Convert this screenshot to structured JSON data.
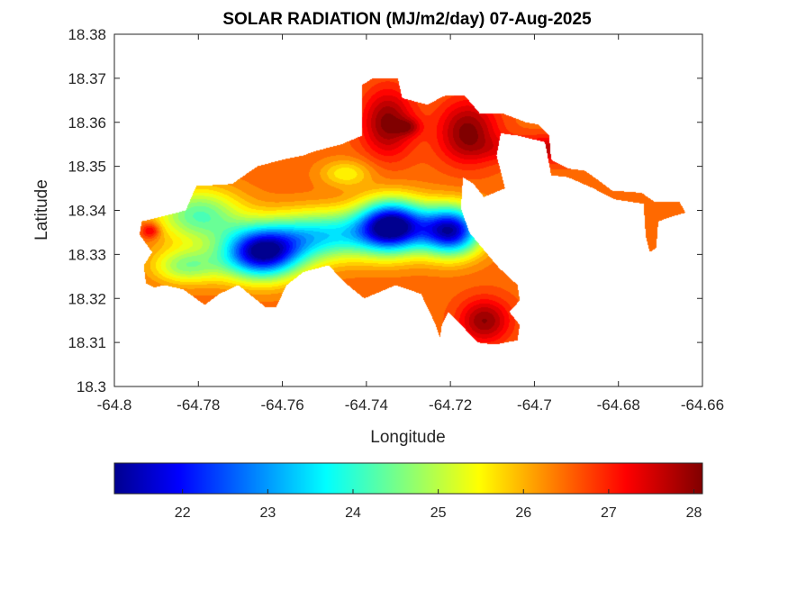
{
  "chart_data": {
    "type": "heatmap",
    "title": "SOLAR RADIATION (MJ/m2/day) 07-Aug-2025",
    "xlabel": "Longitude",
    "ylabel": "Latitude",
    "xlim": [
      -64.8,
      -64.66
    ],
    "ylim": [
      18.3,
      18.38
    ],
    "xticks": [
      -64.8,
      -64.78,
      -64.76,
      -64.74,
      -64.72,
      -64.7,
      -64.68,
      -64.66
    ],
    "xtick_labels": [
      "-64.8",
      "-64.78",
      "-64.76",
      "-64.74",
      "-64.72",
      "-64.7",
      "-64.68",
      "-64.66"
    ],
    "yticks": [
      18.3,
      18.31,
      18.32,
      18.33,
      18.34,
      18.35,
      18.36,
      18.37,
      18.38
    ],
    "ytick_labels": [
      "18.3",
      "18.31",
      "18.32",
      "18.33",
      "18.34",
      "18.35",
      "18.36",
      "18.37",
      "18.38"
    ],
    "grid": false,
    "colormap": "jet",
    "colorbar": {
      "orientation": "horizontal",
      "location": "bottom",
      "range": [
        21.2,
        28.1
      ],
      "ticks": [
        22,
        23,
        24,
        25,
        26,
        27,
        28
      ],
      "tick_labels": [
        "22",
        "23",
        "24",
        "25",
        "26",
        "27",
        "28"
      ]
    },
    "land_outline": [
      [
        -64.7935,
        18.3375
      ],
      [
        -64.789,
        18.3385
      ],
      [
        -64.783,
        18.34
      ],
      [
        -64.7805,
        18.3455
      ],
      [
        -64.772,
        18.346
      ],
      [
        -64.766,
        18.35
      ],
      [
        -64.76,
        18.3515
      ],
      [
        -64.755,
        18.3525
      ],
      [
        -64.752,
        18.3535
      ],
      [
        -64.746,
        18.355
      ],
      [
        -64.741,
        18.357
      ],
      [
        -64.741,
        18.3685
      ],
      [
        -64.7385,
        18.37
      ],
      [
        -64.7325,
        18.37
      ],
      [
        -64.7315,
        18.3655
      ],
      [
        -64.7255,
        18.364
      ],
      [
        -64.7215,
        18.366
      ],
      [
        -64.7165,
        18.366
      ],
      [
        -64.713,
        18.362
      ],
      [
        -64.7075,
        18.362
      ],
      [
        -64.702,
        18.36
      ],
      [
        -64.699,
        18.3595
      ],
      [
        -64.6965,
        18.357
      ],
      [
        -64.696,
        18.3515
      ],
      [
        -64.692,
        18.3495
      ],
      [
        -64.688,
        18.349
      ],
      [
        -64.685,
        18.347
      ],
      [
        -64.6815,
        18.3445
      ],
      [
        -64.6745,
        18.344
      ],
      [
        -64.6715,
        18.342
      ],
      [
        -64.6655,
        18.342
      ],
      [
        -64.664,
        18.3395
      ],
      [
        -64.6675,
        18.3385
      ],
      [
        -64.6705,
        18.3375
      ],
      [
        -64.671,
        18.3315
      ],
      [
        -64.6725,
        18.3305
      ],
      [
        -64.6735,
        18.334
      ],
      [
        -64.674,
        18.3415
      ],
      [
        -64.681,
        18.3425
      ],
      [
        -64.686,
        18.345
      ],
      [
        -64.692,
        18.3475
      ],
      [
        -64.696,
        18.348
      ],
      [
        -64.6975,
        18.3555
      ],
      [
        -64.704,
        18.357
      ],
      [
        -64.708,
        18.3575
      ],
      [
        -64.709,
        18.3525
      ],
      [
        -64.707,
        18.345
      ],
      [
        -64.712,
        18.343
      ],
      [
        -64.7145,
        18.346
      ],
      [
        -64.717,
        18.3475
      ],
      [
        -64.7175,
        18.3405
      ],
      [
        -64.7155,
        18.335
      ],
      [
        -64.712,
        18.331
      ],
      [
        -64.7085,
        18.327
      ],
      [
        -64.704,
        18.323
      ],
      [
        -64.7035,
        18.3195
      ],
      [
        -64.706,
        18.317
      ],
      [
        -64.7035,
        18.314
      ],
      [
        -64.704,
        18.3105
      ],
      [
        -64.7095,
        18.3095
      ],
      [
        -64.7135,
        18.31
      ],
      [
        -64.7175,
        18.314
      ],
      [
        -64.7205,
        18.317
      ],
      [
        -64.722,
        18.314
      ],
      [
        -64.7225,
        18.311
      ],
      [
        -64.7235,
        18.314
      ],
      [
        -64.727,
        18.321
      ],
      [
        -64.733,
        18.323
      ],
      [
        -64.7405,
        18.32
      ],
      [
        -64.745,
        18.3235
      ],
      [
        -64.749,
        18.3275
      ],
      [
        -64.755,
        18.326
      ],
      [
        -64.759,
        18.323
      ],
      [
        -64.7615,
        18.318
      ],
      [
        -64.764,
        18.318
      ],
      [
        -64.7705,
        18.323
      ],
      [
        -64.775,
        18.321
      ],
      [
        -64.7785,
        18.3185
      ],
      [
        -64.7835,
        18.322
      ],
      [
        -64.788,
        18.323
      ],
      [
        -64.7905,
        18.3225
      ],
      [
        -64.7925,
        18.3235
      ],
      [
        -64.793,
        18.3275
      ],
      [
        -64.791,
        18.3305
      ],
      [
        -64.794,
        18.3345
      ],
      [
        -64.7935,
        18.3375
      ]
    ],
    "field_base": 26.5,
    "field_features": [
      {
        "lon": -64.765,
        "lat": 18.3305,
        "peak": -5.2,
        "radius_lon": 0.0095,
        "radius_lat": 0.0058
      },
      {
        "lon": -64.734,
        "lat": 18.3365,
        "peak": -5.4,
        "radius_lon": 0.008,
        "radius_lat": 0.0058
      },
      {
        "lon": -64.72,
        "lat": 18.3355,
        "peak": -5.0,
        "radius_lon": 0.0072,
        "radius_lat": 0.0055
      },
      {
        "lon": -64.75,
        "lat": 18.3345,
        "peak": -2.8,
        "radius_lon": 0.013,
        "radius_lat": 0.0055
      },
      {
        "lon": -64.78,
        "lat": 18.339,
        "peak": -2.2,
        "radius_lon": 0.01,
        "radius_lat": 0.006
      },
      {
        "lon": -64.783,
        "lat": 18.3275,
        "peak": -1.8,
        "radius_lon": 0.008,
        "radius_lat": 0.004
      },
      {
        "lon": -64.7915,
        "lat": 18.3355,
        "peak": 1.2,
        "radius_lon": 0.0022,
        "radius_lat": 0.0018
      },
      {
        "lon": -64.745,
        "lat": 18.3485,
        "peak": -1.0,
        "radius_lon": 0.006,
        "radius_lat": 0.003
      },
      {
        "lon": -64.735,
        "lat": 18.36,
        "peak": 1.6,
        "radius_lon": 0.006,
        "radius_lat": 0.0075
      },
      {
        "lon": -64.716,
        "lat": 18.358,
        "peak": 1.6,
        "radius_lon": 0.007,
        "radius_lat": 0.007
      },
      {
        "lon": -64.73,
        "lat": 18.359,
        "peak": 0.8,
        "radius_lon": 0.003,
        "radius_lat": 0.002
      },
      {
        "lon": -64.712,
        "lat": 18.315,
        "peak": 1.5,
        "radius_lon": 0.006,
        "radius_lat": 0.005
      },
      {
        "lon": -64.695,
        "lat": 18.354,
        "peak": 1.2,
        "radius_lon": 0.015,
        "radius_lat": 0.003
      }
    ]
  }
}
